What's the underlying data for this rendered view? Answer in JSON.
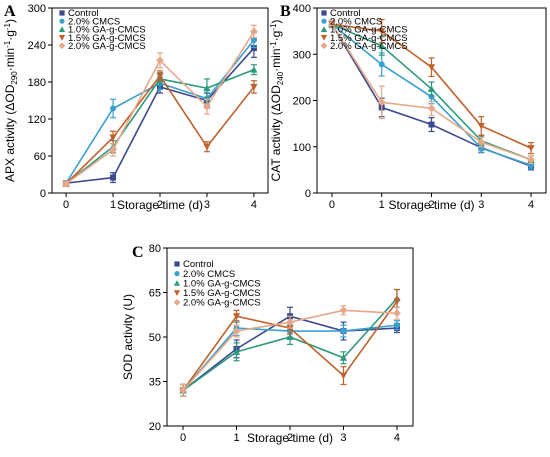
{
  "chart_data": [
    {
      "panel": "A",
      "type": "line",
      "xlabel": "Storage time (d)",
      "ylabel": {
        "main": "APX activity (ΔOD",
        "sub": "290",
        "rest": "·min",
        "sup1": "-1",
        "rest2": "·g",
        "sup2": "-1",
        "end": ")"
      },
      "x": [
        0,
        1,
        2,
        3,
        4
      ],
      "ylim": [
        0,
        300
      ],
      "yticks": [
        "0",
        "60",
        "120",
        "180",
        "240",
        "300"
      ],
      "series": [
        {
          "name": "Control",
          "color": "#3b4a8f",
          "marker": "square",
          "values": [
            16,
            25,
            172,
            150,
            235
          ],
          "err": [
            4,
            8,
            10,
            12,
            15
          ]
        },
        {
          "name": "2.0% CMCS",
          "color": "#3aa0d0",
          "marker": "circle",
          "values": [
            16,
            137,
            178,
            153,
            248
          ],
          "err": [
            4,
            15,
            10,
            10,
            12
          ]
        },
        {
          "name": "1.0% GA-g-CMCS",
          "color": "#2e9a7e",
          "marker": "triangle-up",
          "values": [
            15,
            75,
            185,
            170,
            200
          ],
          "err": [
            4,
            10,
            10,
            15,
            8
          ]
        },
        {
          "name": "1.5% GA-g-CMCS",
          "color": "#c0602a",
          "marker": "triangle-down",
          "values": [
            15,
            90,
            190,
            75,
            172
          ],
          "err": [
            4,
            10,
            8,
            8,
            10
          ]
        },
        {
          "name": "2.0% GA-g-CMCS",
          "color": "#e6a889",
          "marker": "diamond",
          "values": [
            15,
            70,
            215,
            140,
            262
          ],
          "err": [
            4,
            10,
            12,
            12,
            10
          ]
        }
      ]
    },
    {
      "panel": "B",
      "type": "line",
      "xlabel": "Storage time (d)",
      "ylabel": {
        "main": "CAT activity (ΔOD",
        "sub": "240",
        "rest": "·min",
        "sup1": "-1",
        "rest2": "·g",
        "sup2": "-1",
        "end": ")"
      },
      "x": [
        0,
        1,
        2,
        3,
        4
      ],
      "ylim": [
        0,
        400
      ],
      "yticks": [
        "0",
        "100",
        "200",
        "300",
        "400"
      ],
      "series": [
        {
          "name": "Control",
          "color": "#3b4a8f",
          "marker": "square",
          "values": [
            365,
            185,
            148,
            98,
            58
          ],
          "err": [
            8,
            20,
            15,
            10,
            8
          ]
        },
        {
          "name": "2.0% CMCS",
          "color": "#3aa0d0",
          "marker": "circle",
          "values": [
            365,
            278,
            208,
            97,
            60
          ],
          "err": [
            8,
            25,
            15,
            10,
            8
          ]
        },
        {
          "name": "1.0% GA-g-CMCS",
          "color": "#2e9a7e",
          "marker": "triangle-up",
          "values": [
            365,
            318,
            225,
            113,
            72
          ],
          "err": [
            8,
            20,
            15,
            10,
            8
          ]
        },
        {
          "name": "1.5% GA-g-CMCS",
          "color": "#c0602a",
          "marker": "triangle-down",
          "values": [
            365,
            350,
            272,
            145,
            97
          ],
          "err": [
            8,
            25,
            20,
            20,
            12
          ]
        },
        {
          "name": "2.0% GA-g-CMCS",
          "color": "#e6a889",
          "marker": "diamond",
          "values": [
            365,
            196,
            183,
            110,
            72
          ],
          "err": [
            8,
            35,
            15,
            10,
            8
          ]
        }
      ]
    },
    {
      "panel": "C",
      "type": "line",
      "xlabel": "Storage time (d)",
      "ylabel": {
        "main": "SOD activity (U)"
      },
      "x": [
        0,
        1,
        2,
        3,
        4
      ],
      "ylim": [
        20,
        80
      ],
      "yticks": [
        "20",
        "35",
        "50",
        "65",
        "80"
      ],
      "series": [
        {
          "name": "Control",
          "color": "#3b4a8f",
          "marker": "square",
          "values": [
            32,
            46,
            57,
            52,
            53
          ],
          "err": [
            2,
            3,
            3,
            3,
            1.5
          ]
        },
        {
          "name": "2.0% CMCS",
          "color": "#3aa0d0",
          "marker": "circle",
          "values": [
            32,
            53,
            52,
            52,
            54
          ],
          "err": [
            2,
            2.5,
            2,
            2,
            1.5
          ]
        },
        {
          "name": "1.0% GA-g-CMCS",
          "color": "#2e9a7e",
          "marker": "triangle-up",
          "values": [
            32,
            45,
            50,
            43,
            63
          ],
          "err": [
            2,
            3,
            2.5,
            2,
            3
          ]
        },
        {
          "name": "1.5% GA-g-CMCS",
          "color": "#c0602a",
          "marker": "triangle-down",
          "values": [
            32,
            57,
            53,
            37,
            62
          ],
          "err": [
            2,
            2,
            2,
            3,
            4
          ]
        },
        {
          "name": "2.0% GA-g-CMCS",
          "color": "#e6a889",
          "marker": "diamond",
          "values": [
            32,
            52,
            55,
            59,
            58
          ],
          "err": [
            2,
            2,
            2,
            1.5,
            2
          ]
        }
      ]
    }
  ]
}
